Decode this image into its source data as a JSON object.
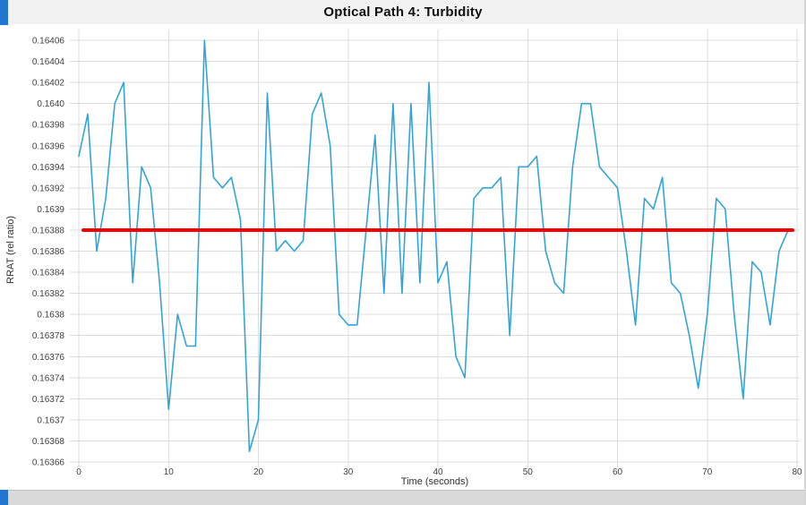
{
  "window": {
    "accent_color": "#2176d2"
  },
  "chart_data": {
    "type": "line",
    "title": "Optical Path 4: Turbidity",
    "xlabel": "Time (seconds)",
    "ylabel": "RRAT (rel ratio)",
    "x_start": 0,
    "x_step": 1,
    "xticks": [
      0,
      10,
      20,
      30,
      40,
      50,
      60,
      70,
      80
    ],
    "ytick_labels": [
      "0.16406",
      "0.16404",
      "0.16402",
      "0.1640",
      "0.16398",
      "0.16396",
      "0.16394",
      "0.16392",
      "0.1639",
      "0.16388",
      "0.16386",
      "0.16384",
      "0.16382",
      "0.1638",
      "0.16378",
      "0.16376",
      "0.16374",
      "0.16372",
      "0.1637",
      "0.16368",
      "0.16366"
    ],
    "xlim": [
      -1,
      81
    ],
    "ylim": [
      0.163655,
      0.16407
    ],
    "grid": true,
    "grid_color": "#dcdcdc",
    "tick_text_color": "#404040",
    "legend": "none",
    "series": [
      {
        "name": "RRAT",
        "color": "#31a5d9",
        "values": [
          0.16395,
          0.16399,
          0.16386,
          0.16391,
          0.164,
          0.16402,
          0.16383,
          0.16394,
          0.16392,
          0.16383,
          0.16371,
          0.1638,
          0.16377,
          0.16377,
          0.16406,
          0.16393,
          0.16392,
          0.16393,
          0.16389,
          0.16367,
          0.1637,
          0.16401,
          0.16386,
          0.16387,
          0.16386,
          0.16387,
          0.16399,
          0.16401,
          0.16396,
          0.1638,
          0.16379,
          0.16379,
          0.16388,
          0.16397,
          0.16382,
          0.164,
          0.16382,
          0.164,
          0.16383,
          0.16402,
          0.16383,
          0.16385,
          0.16376,
          0.16374,
          0.16391,
          0.16392,
          0.16392,
          0.16393,
          0.16378,
          0.16394,
          0.16394,
          0.16395,
          0.16386,
          0.16383,
          0.16382,
          0.16394,
          0.164,
          0.164,
          0.16394,
          0.16393,
          0.16392,
          0.16386,
          0.16379,
          0.16391,
          0.1639,
          0.16393,
          0.16383,
          0.16382,
          0.16378,
          0.16373,
          0.1638,
          0.16391,
          0.1639,
          0.1638,
          0.16372,
          0.16385,
          0.16384,
          0.16379,
          0.16386,
          0.16388
        ]
      }
    ],
    "mean_line": {
      "value": 0.16388,
      "color": "#f40000",
      "x_from": 0.5,
      "x_to": 79.5
    }
  }
}
